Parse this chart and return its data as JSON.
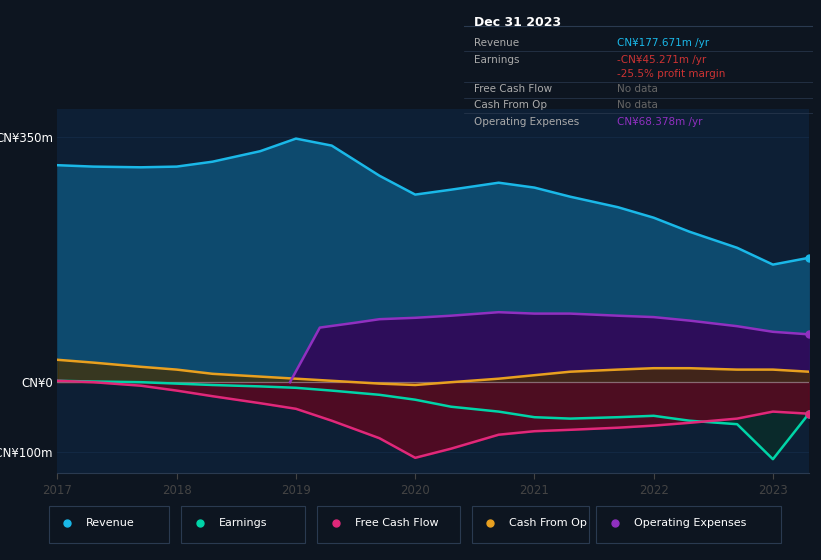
{
  "bg_color": "#0d1520",
  "plot_bg": "#0d1f35",
  "years": [
    2017,
    2017.3,
    2017.7,
    2018,
    2018.3,
    2018.7,
    2019,
    2019.3,
    2019.7,
    2020,
    2020.3,
    2020.7,
    2021,
    2021.3,
    2021.7,
    2022,
    2022.3,
    2022.7,
    2023,
    2023.3
  ],
  "revenue": [
    310,
    308,
    307,
    308,
    315,
    330,
    348,
    338,
    295,
    268,
    275,
    285,
    278,
    265,
    250,
    235,
    215,
    192,
    168,
    177.671
  ],
  "earnings": [
    2,
    1,
    0,
    -2,
    -4,
    -6,
    -8,
    -12,
    -18,
    -25,
    -35,
    -42,
    -50,
    -52,
    -50,
    -48,
    -55,
    -60,
    -110,
    -45.271
  ],
  "free_cash_flow": [
    2,
    0,
    -5,
    -12,
    -20,
    -30,
    -38,
    -55,
    -80,
    -108,
    -95,
    -75,
    -70,
    -68,
    -65,
    -62,
    -58,
    -52,
    -42,
    -45
  ],
  "cash_from_op": [
    32,
    28,
    22,
    18,
    12,
    8,
    5,
    2,
    -2,
    -4,
    0,
    5,
    10,
    15,
    18,
    20,
    20,
    18,
    18,
    15
  ],
  "op_expenses_x": [
    2018.95,
    2019.2,
    2019.5,
    2019.7,
    2020,
    2020.3,
    2020.7,
    2021,
    2021.3,
    2021.7,
    2022,
    2022.3,
    2022.7,
    2023,
    2023.3
  ],
  "op_expenses_y": [
    0,
    78,
    85,
    90,
    92,
    95,
    100,
    98,
    98,
    95,
    93,
    88,
    80,
    72,
    68.378
  ],
  "ylim_min": -130,
  "ylim_max": 390,
  "ytick_labels": [
    "CN¥350m",
    "CN¥0",
    "-CN¥100m"
  ],
  "ytick_values": [
    350,
    0,
    -100
  ],
  "xtick_labels": [
    "2017",
    "2018",
    "2019",
    "2020",
    "2021",
    "2022",
    "2023"
  ],
  "xtick_values": [
    2017,
    2018,
    2019,
    2020,
    2021,
    2022,
    2023
  ],
  "revenue_color": "#1ab8e8",
  "earnings_color": "#00d4a8",
  "fcf_color": "#e0287a",
  "cashop_color": "#e8a020",
  "opex_color": "#9030c0",
  "revenue_fill": "#0d4a6e",
  "earnings_fill": "#0a3028",
  "fcf_fill": "#5a0820",
  "cashop_fill": "#4a3000",
  "opex_fill": "#2d0d5a",
  "legend_items": [
    {
      "label": "Revenue",
      "color": "#1ab8e8"
    },
    {
      "label": "Earnings",
      "color": "#00d4a8"
    },
    {
      "label": "Free Cash Flow",
      "color": "#e0287a"
    },
    {
      "label": "Cash From Op",
      "color": "#e8a020"
    },
    {
      "label": "Operating Expenses",
      "color": "#9030c0"
    }
  ],
  "info_box": {
    "title": "Dec 31 2023",
    "rows": [
      {
        "label": "Revenue",
        "value": "CN¥177.671m /yr",
        "value_color": "#1ab8e8"
      },
      {
        "label": "Earnings",
        "value": "-CN¥45.271m /yr",
        "value_color": "#cc3333"
      },
      {
        "label": "",
        "value": "-25.5% profit margin",
        "value_color": "#cc3333"
      },
      {
        "label": "Free Cash Flow",
        "value": "No data",
        "value_color": "#666666"
      },
      {
        "label": "Cash From Op",
        "value": "No data",
        "value_color": "#666666"
      },
      {
        "label": "Operating Expenses",
        "value": "CN¥68.378m /yr",
        "value_color": "#9030c0"
      }
    ]
  },
  "zero_line_color": "#aaaaaa",
  "grid_color": "#1e3a5f",
  "line_width": 1.8,
  "marker_size": 5
}
